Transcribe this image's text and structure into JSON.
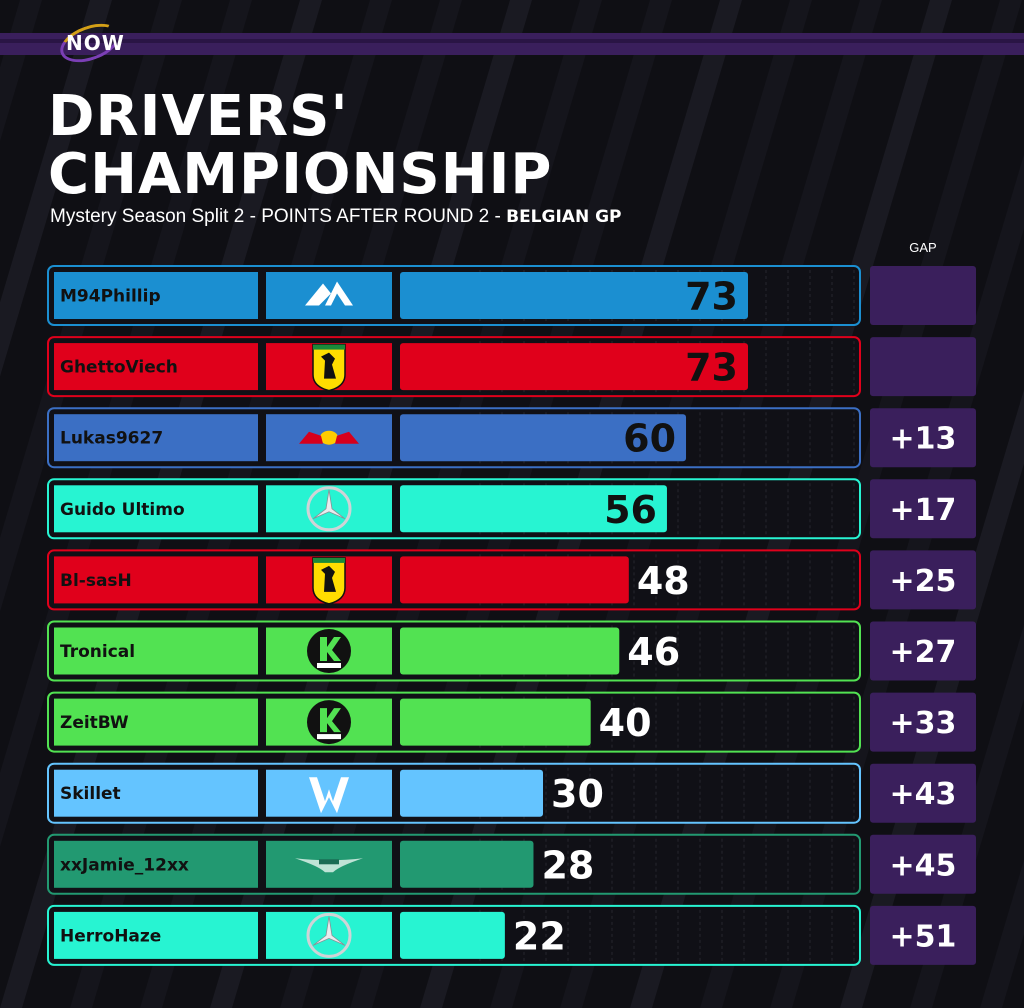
{
  "header": {
    "logo_text": "NOW",
    "title_line1": "DRIVERS'",
    "title_line2": "CHAMPIONSHIP",
    "subtitle": "Mystery Season Split 2 - POINTS AFTER ROUND 2 - ",
    "subtitle_event": "BELGIAN GP",
    "gap_label": "GAP"
  },
  "colors": {
    "background": "#0f0f14",
    "gap_box": "#3a1f5c",
    "alpine": "#1b8fd1",
    "ferrari": "#e0001b",
    "redbull": "#3b6fc4",
    "mercedes": "#27f4d2",
    "sauber": "#52e252",
    "williams": "#64c4ff",
    "astonmartin": "#229971"
  },
  "chart_data": {
    "type": "bar",
    "orientation": "horizontal",
    "title": "DRIVERS' CHAMPIONSHIP",
    "subtitle": "Mystery Season Split 2 - POINTS AFTER ROUND 2 - BELGIAN GP",
    "xlim": [
      0,
      73
    ],
    "rows": [
      {
        "driver": "M94Phillip",
        "team": "alpine",
        "team_icon": "alpine-logo-icon",
        "points": 73,
        "gap": ""
      },
      {
        "driver": "GhettoViech",
        "team": "ferrari",
        "team_icon": "ferrari-logo-icon",
        "points": 73,
        "gap": ""
      },
      {
        "driver": "Lukas9627",
        "team": "redbull",
        "team_icon": "red-bull-logo-icon",
        "points": 60,
        "gap": "+13"
      },
      {
        "driver": "Guido Ultimo",
        "team": "mercedes",
        "team_icon": "mercedes-logo-icon",
        "points": 56,
        "gap": "+17"
      },
      {
        "driver": "Bl-sasH",
        "team": "ferrari",
        "team_icon": "ferrari-logo-icon",
        "points": 48,
        "gap": "+25"
      },
      {
        "driver": "Tronical",
        "team": "sauber",
        "team_icon": "sauber-logo-icon",
        "points": 46,
        "gap": "+27"
      },
      {
        "driver": "ZeitBW",
        "team": "sauber",
        "team_icon": "sauber-logo-icon",
        "points": 40,
        "gap": "+33"
      },
      {
        "driver": "Skillet",
        "team": "williams",
        "team_icon": "williams-logo-icon",
        "points": 30,
        "gap": "+43"
      },
      {
        "driver": "xxJamie_12xx",
        "team": "astonmartin",
        "team_icon": "aston-martin-logo-icon",
        "points": 28,
        "gap": "+45"
      },
      {
        "driver": "HerroHaze",
        "team": "mercedes",
        "team_icon": "mercedes-logo-icon",
        "points": 22,
        "gap": "+51"
      }
    ]
  }
}
